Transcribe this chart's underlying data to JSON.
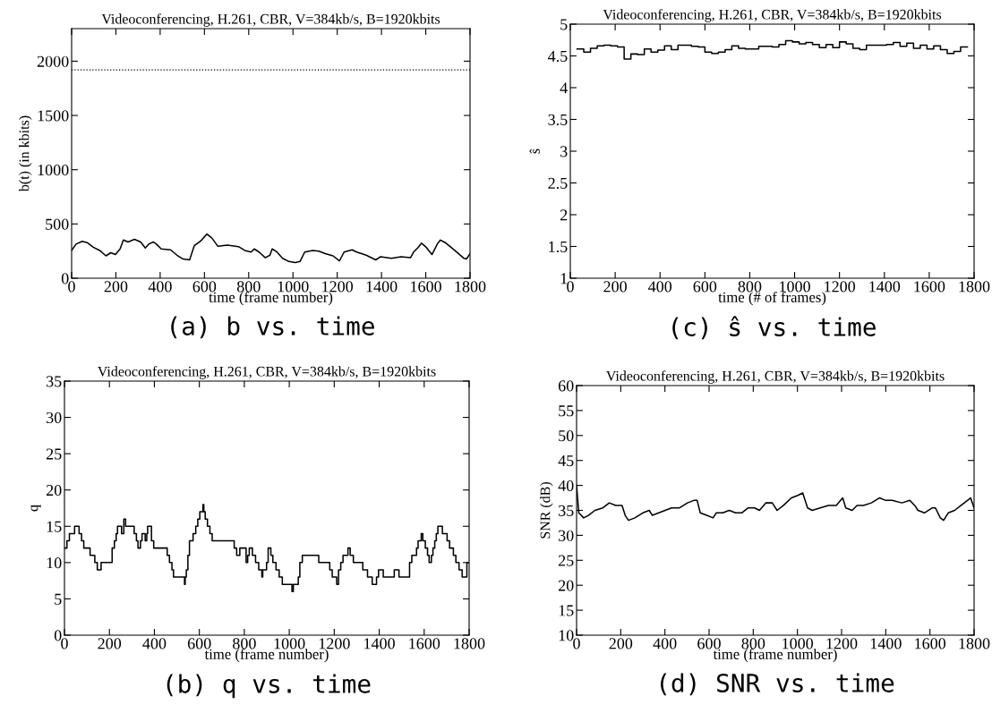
{
  "chart_data": [
    {
      "type": "line",
      "title": "Videoconferencing, H.261, CBR, V=384kb/s, B=1920kbits",
      "xlabel": "time (frame number)",
      "ylabel": "b(t) (in kbits)",
      "annotations": [
        "(a) b vs. time"
      ],
      "xlim": [
        0,
        1800
      ],
      "xticks": [
        0,
        200,
        400,
        600,
        800,
        1000,
        1200,
        1400,
        1600,
        1800
      ],
      "ylim": [
        0,
        2300
      ],
      "yticks": [
        0,
        500,
        1000,
        1500,
        2000
      ],
      "grid": false,
      "legend": false,
      "line_style": "solid",
      "ref_lines": [
        {
          "axis": "y",
          "value": 1920,
          "color": "#000000",
          "line_style": "dotted"
        }
      ],
      "x": [
        0,
        20,
        48,
        70,
        98,
        127,
        155,
        177,
        198,
        219,
        234,
        255,
        284,
        312,
        333,
        348,
        369,
        383,
        405,
        447,
        476,
        504,
        533,
        554,
        583,
        611,
        633,
        661,
        704,
        754,
        782,
        811,
        825,
        847,
        875,
        896,
        906,
        925,
        953,
        982,
        1010,
        1032,
        1053,
        1089,
        1117,
        1146,
        1181,
        1210,
        1231,
        1267,
        1288,
        1331,
        1374,
        1396,
        1445,
        1488,
        1531,
        1545,
        1566,
        1581,
        1602,
        1628,
        1652,
        1666,
        1688,
        1731,
        1773,
        1784,
        1800
      ],
      "series": [
        {
          "color": "#000000",
          "values": [
            256,
            314,
            340,
            328,
            285,
            256,
            206,
            235,
            218,
            270,
            352,
            334,
            358,
            334,
            279,
            314,
            334,
            314,
            270,
            262,
            212,
            177,
            169,
            299,
            343,
            407,
            372,
            294,
            305,
            291,
            256,
            241,
            270,
            241,
            189,
            212,
            270,
            247,
            183,
            154,
            145,
            154,
            241,
            256,
            250,
            227,
            206,
            160,
            241,
            262,
            241,
            212,
            169,
            198,
            183,
            198,
            189,
            241,
            285,
            323,
            285,
            218,
            314,
            352,
            328,
            256,
            183,
            177,
            227
          ]
        }
      ]
    },
    {
      "type": "step",
      "title": "Videoconferencing, H.261, CBR, V=384kb/s, B=1920kbits",
      "xlabel": "time (# of frames)",
      "ylabel": "ŝ",
      "annotations": [
        "(c) ŝ vs. time"
      ],
      "xlim": [
        0,
        1800
      ],
      "xticks": [
        0,
        200,
        400,
        600,
        800,
        1000,
        1200,
        1400,
        1600,
        1800
      ],
      "ylim": [
        1,
        5
      ],
      "yticks": [
        1,
        1.5,
        2,
        2.5,
        3,
        3.5,
        4,
        4.5,
        5
      ],
      "grid": false,
      "legend": false,
      "line_style": "solid",
      "x": [
        30,
        60,
        90,
        120,
        150,
        180,
        210,
        240,
        270,
        300,
        330,
        360,
        390,
        420,
        450,
        480,
        510,
        540,
        570,
        600,
        630,
        660,
        690,
        720,
        750,
        780,
        810,
        840,
        870,
        900,
        930,
        960,
        990,
        1020,
        1050,
        1080,
        1110,
        1140,
        1170,
        1200,
        1230,
        1260,
        1290,
        1320,
        1350,
        1380,
        1410,
        1440,
        1470,
        1500,
        1530,
        1560,
        1590,
        1620,
        1650,
        1680,
        1710,
        1740,
        1770
      ],
      "series": [
        {
          "color": "#000000",
          "values": [
            4.61,
            4.56,
            4.62,
            4.66,
            4.67,
            4.66,
            4.64,
            4.45,
            4.53,
            4.52,
            4.61,
            4.56,
            4.59,
            4.66,
            4.6,
            4.67,
            4.67,
            4.65,
            4.64,
            4.56,
            4.54,
            4.56,
            4.6,
            4.66,
            4.62,
            4.61,
            4.61,
            4.65,
            4.65,
            4.64,
            4.68,
            4.74,
            4.72,
            4.69,
            4.71,
            4.68,
            4.63,
            4.68,
            4.63,
            4.72,
            4.69,
            4.62,
            4.6,
            4.67,
            4.67,
            4.67,
            4.68,
            4.71,
            4.65,
            4.7,
            4.62,
            4.67,
            4.61,
            4.66,
            4.6,
            4.54,
            4.57,
            4.64,
            4.64
          ]
        }
      ]
    },
    {
      "type": "step",
      "title": "Videoconferencing, H.261, CBR, V=384kb/s, B=1920kbits",
      "xlabel": "time (frame number)",
      "ylabel": "q",
      "annotations": [
        "(b) q vs. time"
      ],
      "xlim": [
        0,
        1800
      ],
      "xticks": [
        0,
        200,
        400,
        600,
        800,
        1000,
        1200,
        1400,
        1600,
        1800
      ],
      "ylim": [
        0,
        35
      ],
      "yticks": [
        0,
        5,
        10,
        15,
        20,
        25,
        30,
        35
      ],
      "grid": false,
      "legend": false,
      "line_style": "solid",
      "x": [
        0,
        11,
        22,
        45,
        65,
        76,
        86,
        114,
        135,
        146,
        163,
        212,
        222,
        230,
        236,
        254,
        264,
        272,
        310,
        320,
        327,
        338,
        345,
        359,
        366,
        370,
        387,
        397,
        457,
        467,
        478,
        485,
        534,
        537,
        542,
        549,
        556,
        572,
        584,
        593,
        602,
        616,
        620,
        626,
        636,
        647,
        657,
        755,
        766,
        780,
        808,
        815,
        822,
        836,
        850,
        864,
        878,
        882,
        899,
        906,
        918,
        927,
        941,
        955,
        969,
        1012,
        1018,
        1040,
        1047,
        1058,
        1131,
        1180,
        1191,
        1211,
        1219,
        1229,
        1239,
        1261,
        1271,
        1285,
        1327,
        1348,
        1369,
        1388,
        1397,
        1418,
        1467,
        1488,
        1535,
        1545,
        1566,
        1573,
        1587,
        1594,
        1605,
        1615,
        1622,
        1632,
        1639,
        1647,
        1654,
        1661,
        1681,
        1702,
        1713,
        1730,
        1741,
        1755,
        1769,
        1790,
        1800
      ],
      "series": [
        {
          "color": "#000000",
          "values": [
            12,
            13,
            14,
            15,
            14,
            13,
            12,
            11,
            10,
            9,
            10,
            12,
            13,
            14,
            15,
            14,
            16,
            15,
            14,
            13,
            12,
            13,
            14,
            13,
            14,
            15,
            13,
            12,
            11,
            10,
            9,
            8,
            7,
            8,
            9,
            11,
            13,
            14,
            15,
            16,
            17,
            18,
            17,
            16,
            15,
            14,
            13,
            12,
            11,
            12,
            10,
            11,
            12,
            11,
            10,
            9,
            8,
            9,
            10,
            12,
            11,
            10,
            9,
            8,
            7,
            6,
            7,
            8,
            10,
            11,
            10,
            9,
            8,
            7,
            9,
            10,
            11,
            12,
            11,
            10,
            9,
            8,
            7,
            8,
            9,
            8,
            9,
            8,
            10,
            11,
            12,
            13,
            14,
            13,
            12,
            11,
            10,
            11,
            12,
            13,
            14,
            15,
            14,
            13,
            12,
            11,
            10,
            9,
            8,
            10,
            10
          ]
        }
      ]
    },
    {
      "type": "line",
      "title": "Videoconferencing, H.261, CBR, V=384kb/s, B=1920kbits",
      "xlabel": "time (frame number)",
      "ylabel": "SNR (dB)",
      "annotations": [
        "(d) SNR vs. time"
      ],
      "xlim": [
        0,
        1800
      ],
      "xticks": [
        0,
        200,
        400,
        600,
        800,
        1000,
        1200,
        1400,
        1600,
        1800
      ],
      "ylim": [
        10,
        60
      ],
      "yticks": [
        10,
        15,
        20,
        25,
        30,
        35,
        40,
        45,
        50,
        55,
        60
      ],
      "grid": false,
      "legend": false,
      "line_style": "solid",
      "x": [
        0,
        10,
        32,
        54,
        83,
        119,
        148,
        177,
        206,
        220,
        235,
        264,
        300,
        329,
        343,
        372,
        401,
        430,
        466,
        502,
        531,
        546,
        560,
        589,
        618,
        633,
        662,
        691,
        720,
        748,
        777,
        806,
        828,
        857,
        886,
        908,
        937,
        973,
        1002,
        1024,
        1046,
        1067,
        1103,
        1140,
        1176,
        1205,
        1219,
        1248,
        1270,
        1299,
        1335,
        1371,
        1400,
        1429,
        1473,
        1509,
        1531,
        1546,
        1575,
        1611,
        1625,
        1647,
        1662,
        1683,
        1712,
        1741,
        1770,
        1784,
        1800
      ],
      "series": [
        {
          "color": "#000000",
          "values": [
            40,
            34.5,
            33.5,
            34,
            35,
            35.5,
            36.5,
            36,
            36,
            34,
            33,
            33.5,
            34.5,
            35,
            34,
            34.5,
            35,
            35.5,
            35.5,
            36.5,
            37,
            37,
            34.5,
            34,
            33.5,
            34.5,
            34.5,
            35,
            34.5,
            34.5,
            35.5,
            35.5,
            35,
            36.5,
            36.5,
            35,
            36,
            37.5,
            38,
            38.5,
            35.5,
            35,
            35.5,
            36,
            36,
            37.5,
            35.5,
            35,
            36,
            36,
            36.5,
            37.5,
            37,
            37,
            36.5,
            37,
            36,
            35,
            34.5,
            35.5,
            35.5,
            33.5,
            33,
            34.5,
            35,
            36,
            37,
            37.5,
            35.5
          ]
        }
      ]
    }
  ]
}
